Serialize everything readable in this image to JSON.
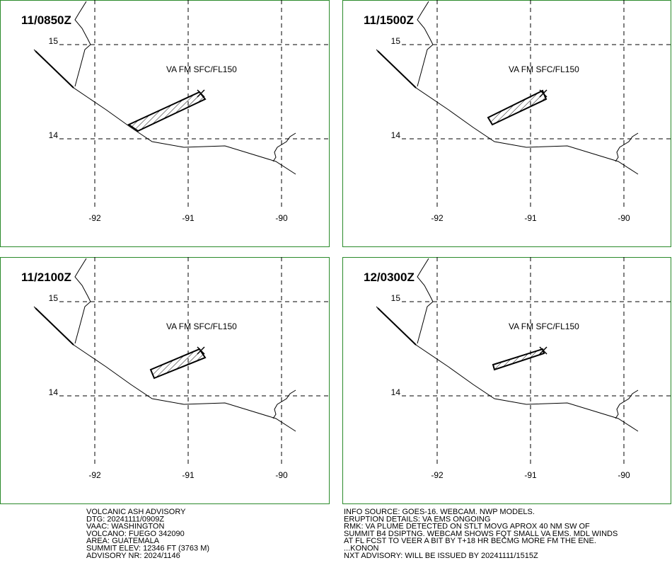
{
  "panels": [
    {
      "time": "11/0850Z",
      "label": "VA FM SFC/FL150",
      "lat_ticks": [
        15,
        14
      ],
      "lon_ticks": [
        -92,
        -91,
        -90
      ]
    },
    {
      "time": "11/1500Z",
      "label": "VA FM SFC/FL150",
      "lat_ticks": [
        15,
        14
      ],
      "lon_ticks": [
        -92,
        -91,
        -90
      ]
    },
    {
      "time": "11/2100Z",
      "label": "VA FM SFC/FL150",
      "lat_ticks": [
        15,
        14
      ],
      "lon_ticks": [
        -92,
        -91,
        -90
      ]
    },
    {
      "time": "12/0300Z",
      "label": "VA FM SFC/FL150",
      "lat_ticks": [
        15,
        14
      ],
      "lon_ticks": [
        -92,
        -91,
        -90
      ]
    }
  ],
  "advisory_left": [
    "VOLCANIC ASH ADVISORY",
    "DTG: 20241111/0909Z",
    "VAAC: WASHINGTON",
    "VOLCANO: FUEGO 342090",
    "AREA: GUATEMALA",
    "SUMMIT ELEV: 12346 FT (3763 M)",
    "ADVISORY NR: 2024/1146"
  ],
  "advisory_right": [
    "INFO SOURCE: GOES-16. WEBCAM. NWP MODELS.",
    "ERUPTION DETAILS: VA EMS ONGOING",
    "RMK: VA PLUME DETECTED ON STLT MOVG APROX 40 NM SW OF",
    "SUMMIT B4 DSIPTNG. WEBCAM SHOWS FQT SMALL VA EMS. MDL WINDS",
    "AT FL FCST TO VEER A BIT BY T+18 HR BECMG MORE FM THE ENE.",
    "...KONON",
    "NXT ADVISORY: WILL BE ISSUED BY 20241111/1515Z"
  ]
}
